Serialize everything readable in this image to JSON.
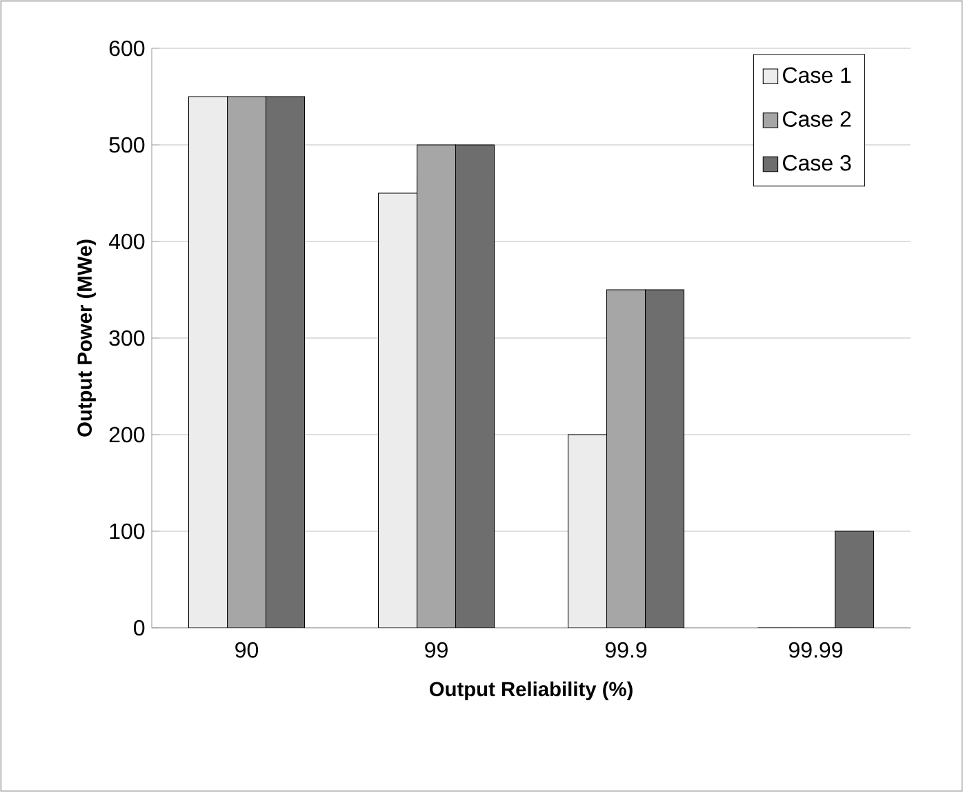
{
  "chart_data": {
    "type": "bar",
    "xlabel": "Output Reliability (%)",
    "ylabel": "Output Power (MWe)",
    "categories": [
      "90",
      "99",
      "99.9",
      "99.99"
    ],
    "series": [
      {
        "name": "Case 1",
        "color": "#ececec",
        "values": [
          550,
          450,
          200,
          0
        ]
      },
      {
        "name": "Case 2",
        "color": "#a6a6a6",
        "values": [
          550,
          500,
          350,
          0
        ]
      },
      {
        "name": "Case 3",
        "color": "#6e6e6e",
        "values": [
          550,
          500,
          350,
          100
        ]
      }
    ],
    "ylim": [
      0,
      600
    ],
    "yticks": [
      0,
      100,
      200,
      300,
      400,
      500,
      600
    ],
    "grid": "y",
    "legend": "top right"
  }
}
